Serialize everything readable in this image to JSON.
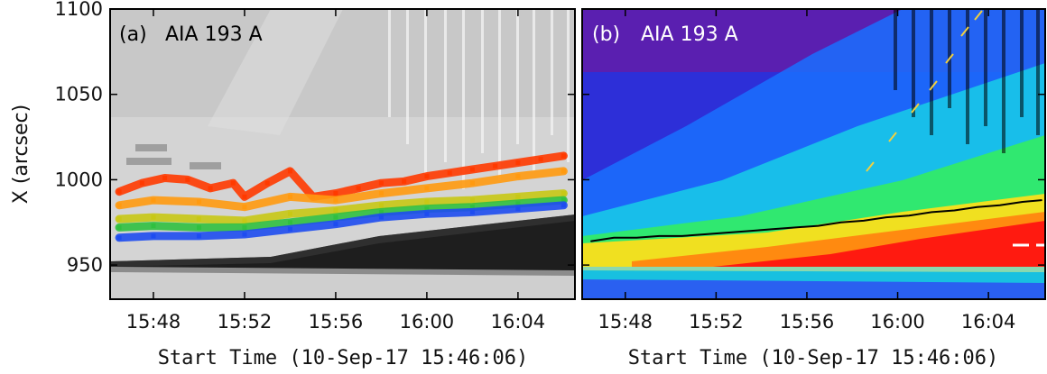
{
  "chart_data": [
    {
      "type": "heatmap",
      "panel_label": "(a)",
      "title": "AIA 193 A",
      "colormap": "grayscale",
      "xlabel": "Start Time (10-Sep-17 15:46:06)",
      "ylabel": "X (arcsec)",
      "x_ticks": [
        "15:48",
        "15:52",
        "15:56",
        "16:00",
        "16:04"
      ],
      "y_ticks": [
        950,
        1000,
        1050,
        1100
      ],
      "xlim": [
        "15:46:06",
        "16:06:30"
      ],
      "ylim": [
        930,
        1100
      ],
      "overlay_series": [
        {
          "color": "#ff3a00",
          "x": [
            "15:46:30",
            "15:47:30",
            "15:48:30",
            "15:49:30",
            "15:50:30",
            "15:51:30",
            "15:52:00",
            "15:53:00",
            "15:54:00",
            "15:55:00",
            "15:56:00",
            "15:57:00",
            "15:58:00",
            "15:59:00",
            "16:00:00",
            "16:01:00",
            "16:02:00",
            "16:03:00",
            "16:04:00",
            "16:05:00",
            "16:06:00"
          ],
          "y": [
            993,
            998,
            1001,
            1000,
            995,
            998,
            990,
            998,
            1005,
            990,
            992,
            995,
            998,
            999,
            1002,
            1004,
            1006,
            1008,
            1010,
            1012,
            1014
          ]
        },
        {
          "color": "#ff9a10",
          "x": [
            "15:46:30",
            "15:48:00",
            "15:50:00",
            "15:52:00",
            "15:54:00",
            "15:56:00",
            "15:58:00",
            "16:00:00",
            "16:02:00",
            "16:04:00",
            "16:06:00"
          ],
          "y": [
            985,
            988,
            987,
            984,
            990,
            988,
            992,
            995,
            998,
            1002,
            1005
          ]
        },
        {
          "color": "#c8c815",
          "x": [
            "15:46:30",
            "15:48:00",
            "15:50:00",
            "15:52:00",
            "15:54:00",
            "15:56:00",
            "15:58:00",
            "16:00:00",
            "16:02:00",
            "16:04:00",
            "16:06:00"
          ],
          "y": [
            977,
            978,
            977,
            976,
            980,
            982,
            985,
            987,
            988,
            990,
            992
          ]
        },
        {
          "color": "#30c040",
          "x": [
            "15:46:30",
            "15:48:00",
            "15:50:00",
            "15:52:00",
            "15:54:00",
            "15:56:00",
            "15:58:00",
            "16:00:00",
            "16:02:00",
            "16:04:00",
            "16:06:00"
          ],
          "y": [
            972,
            973,
            972,
            972,
            975,
            978,
            981,
            983,
            984,
            986,
            988
          ]
        },
        {
          "color": "#1e4cf0",
          "x": [
            "15:46:30",
            "15:48:00",
            "15:50:00",
            "15:52:00",
            "15:54:00",
            "15:56:00",
            "15:58:00",
            "16:00:00",
            "16:02:00",
            "16:04:00",
            "16:06:00"
          ],
          "y": [
            966,
            967,
            967,
            968,
            971,
            974,
            978,
            980,
            981,
            983,
            985
          ]
        }
      ]
    },
    {
      "type": "heatmap",
      "panel_label": "(b)",
      "title": "AIA 193 A",
      "colormap": "rainbow",
      "xlabel": "Start Time (10-Sep-17 15:46:06)",
      "ylabel": "",
      "x_ticks": [
        "15:48",
        "15:52",
        "15:56",
        "16:00",
        "16:04"
      ],
      "y_ticks": [
        950,
        1000,
        1050,
        1100
      ],
      "xlim": [
        "15:46:06",
        "16:06:30"
      ],
      "ylim": [
        930,
        1100
      ],
      "overlay_series": [
        {
          "color": "#000000",
          "x": [
            "15:46:30",
            "15:47:30",
            "15:48:30",
            "15:49:30",
            "15:50:30",
            "15:51:30",
            "15:52:30",
            "15:53:30",
            "15:54:30",
            "15:55:30",
            "15:56:30",
            "15:57:30",
            "15:58:30",
            "15:59:30",
            "16:00:30",
            "16:01:30",
            "16:02:30",
            "16:03:30",
            "16:04:30",
            "16:05:30",
            "16:06:20"
          ],
          "y": [
            964,
            966,
            966,
            967,
            967,
            968,
            969,
            970,
            971,
            972,
            973,
            975,
            976,
            978,
            979,
            981,
            982,
            984,
            985,
            987,
            988
          ]
        }
      ]
    }
  ]
}
